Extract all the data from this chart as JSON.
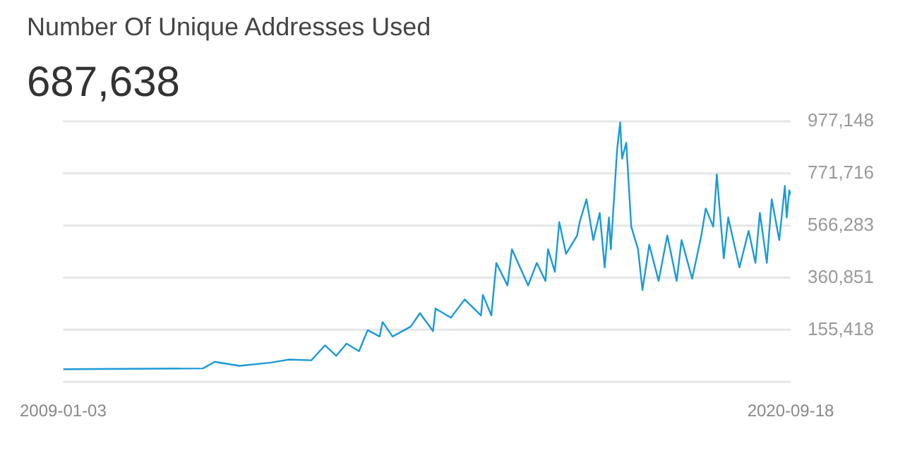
{
  "chart_data": {
    "type": "line",
    "title": "Number Of Unique Addresses Used",
    "subtitle": "687,638",
    "x": [
      "2009-01-03",
      "2011-04-05",
      "2011-06-13",
      "2011-11-06",
      "2012-05-08",
      "2012-08-21",
      "2013-01-01",
      "2013-03-22",
      "2013-05-27",
      "2013-07-27",
      "2013-10-08",
      "2013-11-28",
      "2014-02-06",
      "2014-02-24",
      "2014-04-23",
      "2014-08-08",
      "2014-10-01",
      "2014-12-17",
      "2015-01-01",
      "2015-04-01",
      "2015-06-21",
      "2015-09-25",
      "2015-10-06",
      "2015-11-25",
      "2015-12-24",
      "2016-02-28",
      "2016-03-25",
      "2016-06-28",
      "2016-08-18",
      "2016-10-08",
      "2016-10-23",
      "2016-12-02",
      "2016-12-28",
      "2017-02-06",
      "2017-04-12",
      "2017-04-27",
      "2017-06-06",
      "2017-07-16",
      "2017-08-23",
      "2017-09-21",
      "2017-10-16",
      "2017-10-27",
      "2017-11-18",
      "2017-12-03",
      "2017-12-21",
      "2018-01-01",
      "2018-01-26",
      "2018-02-24",
      "2018-04-05",
      "2018-05-01",
      "2018-06-10",
      "2018-08-04",
      "2018-09-24",
      "2018-11-18",
      "2018-12-17",
      "2019-02-17",
      "2019-04-12",
      "2019-05-08",
      "2019-06-21",
      "2019-07-12",
      "2019-08-22",
      "2019-09-17",
      "2019-11-22",
      "2020-01-15",
      "2020-02-24",
      "2020-03-21",
      "2020-05-01",
      "2020-05-30",
      "2020-07-13",
      "2020-08-15",
      "2020-08-26",
      "2020-09-10",
      "2020-09-18"
    ],
    "values": [
      0,
      3000,
      29000,
      13000,
      26000,
      38000,
      35000,
      94000,
      53000,
      101000,
      71000,
      154000,
      129000,
      186000,
      129000,
      168000,
      221000,
      150000,
      239000,
      203000,
      275000,
      212000,
      293000,
      212000,
      419000,
      330000,
      473000,
      330000,
      419000,
      348000,
      473000,
      384000,
      580000,
      455000,
      527000,
      580000,
      670000,
      509000,
      616000,
      401000,
      598000,
      473000,
      705000,
      866000,
      973000,
      830000,
      893000,
      562000,
      473000,
      312000,
      491000,
      348000,
      527000,
      348000,
      509000,
      357000,
      527000,
      634000,
      562000,
      768000,
      437000,
      598000,
      401000,
      545000,
      419000,
      616000,
      419000,
      670000,
      509000,
      723000,
      598000,
      705000,
      687638
    ],
    "color": "#1a9ad6",
    "marker": "none",
    "grid": "y",
    "xlim": [
      "2009-01-03",
      "2020-09-18"
    ],
    "xticks": [
      "2009-01-03",
      "2020-09-18"
    ],
    "ylim": [
      -50015,
      977148
    ],
    "yticks": [
      {
        "value": -50015,
        "label": null
      },
      {
        "value": 155418,
        "label": "155,418"
      },
      {
        "value": 360851,
        "label": "360,851"
      },
      {
        "value": 566283,
        "label": "566,283"
      },
      {
        "value": 771716,
        "label": "771,716"
      },
      {
        "value": 977148,
        "label": "977,148"
      }
    ]
  }
}
